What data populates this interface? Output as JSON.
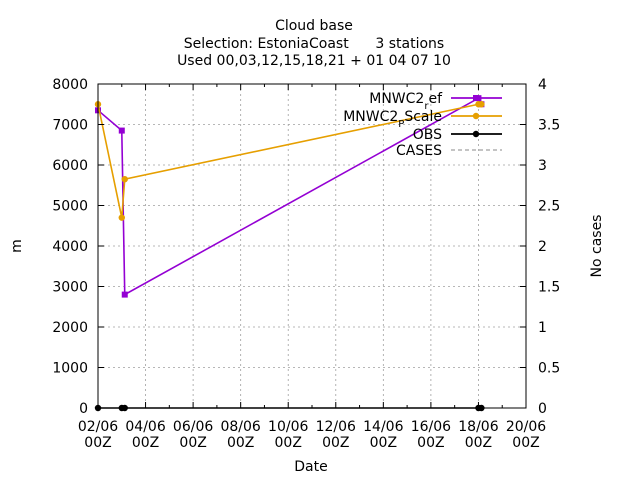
{
  "chart_data": {
    "type": "line",
    "title_lines": [
      "Cloud base",
      "Selection: EstoniaCoast      3 stations",
      "Used 00,03,12,15,18,21 + 01 04 07 10"
    ],
    "xlabel": "Date",
    "ylabel": "m",
    "y2label": "No cases",
    "xlim": [
      0,
      18
    ],
    "ylim": [
      0,
      8000
    ],
    "y2lim": [
      0,
      4
    ],
    "grid": true,
    "legend_position": "top-right",
    "x_ticks": [
      {
        "v": 0,
        "day": "02/06",
        "hour": "00Z"
      },
      {
        "v": 2,
        "day": "04/06",
        "hour": "00Z"
      },
      {
        "v": 4,
        "day": "06/06",
        "hour": "00Z"
      },
      {
        "v": 6,
        "day": "08/06",
        "hour": "00Z"
      },
      {
        "v": 8,
        "day": "10/06",
        "hour": "00Z"
      },
      {
        "v": 10,
        "day": "12/06",
        "hour": "00Z"
      },
      {
        "v": 12,
        "day": "14/06",
        "hour": "00Z"
      },
      {
        "v": 14,
        "day": "16/06",
        "hour": "00Z"
      },
      {
        "v": 16,
        "day": "18/06",
        "hour": "00Z"
      },
      {
        "v": 18,
        "day": "20/06",
        "hour": "00Z"
      }
    ],
    "y_ticks": [
      0,
      1000,
      2000,
      3000,
      4000,
      5000,
      6000,
      7000,
      8000
    ],
    "y2_ticks": [
      "0",
      "0.5",
      "1",
      "1.5",
      "2",
      "2.5",
      "3",
      "3.5",
      "4"
    ],
    "series": [
      {
        "name": "MNWC2_ref",
        "legend_main": "MNWC2",
        "legend_sub": "r",
        "legend_tail": "ef",
        "color": "#9400d3",
        "marker": "square",
        "x": [
          0.0,
          1.0,
          1.125,
          16.0,
          16.125
        ],
        "y": [
          7350,
          6850,
          2800,
          7650,
          7500
        ]
      },
      {
        "name": "MNWC2_PScale",
        "legend_main": "MNWC2",
        "legend_sub": "P",
        "legend_tail": "Scale",
        "color": "#e69f00",
        "marker": "circle",
        "x": [
          0.0,
          1.0,
          1.125,
          16.0,
          16.125
        ],
        "y": [
          7500,
          4700,
          5650,
          7500,
          7500
        ]
      },
      {
        "name": "OBS",
        "legend_main": "OBS",
        "color": "#000000",
        "marker": "circle",
        "x": [
          0.0,
          1.0,
          1.125,
          16.0,
          16.125
        ],
        "y": [
          0,
          0,
          0,
          0,
          0
        ]
      },
      {
        "name": "CASES",
        "legend_main": "CASES",
        "color": "#a0a0a0",
        "marker": "none",
        "dashed": true,
        "x": [],
        "y": []
      }
    ]
  }
}
